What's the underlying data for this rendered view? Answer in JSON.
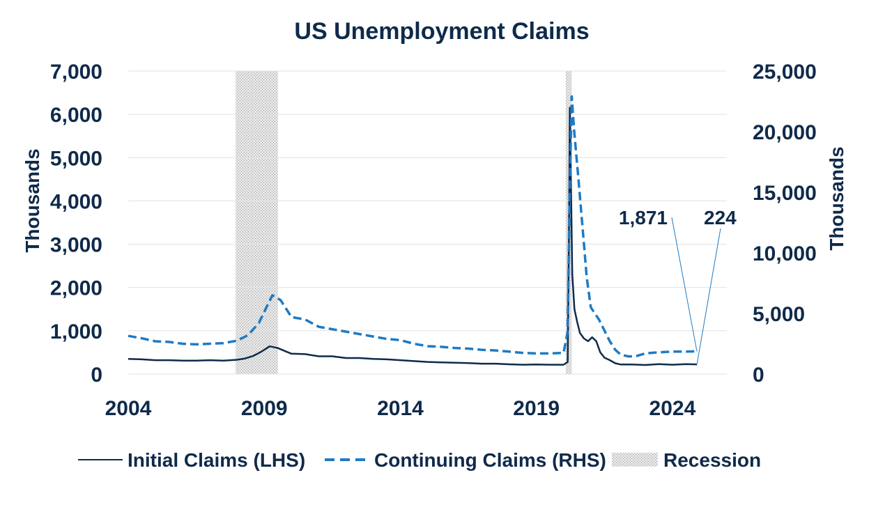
{
  "chart_data": {
    "type": "line",
    "title": "US Unemployment Claims",
    "x_axis": {
      "range": [
        2004,
        2026
      ],
      "ticks": [
        "2004",
        "2009",
        "2014",
        "2019",
        "2024"
      ]
    },
    "y_left": {
      "label": "Thousands",
      "range": [
        0,
        7000
      ],
      "ticks": [
        "0",
        "1,000",
        "2,000",
        "3,000",
        "4,000",
        "5,000",
        "6,000",
        "7,000"
      ]
    },
    "y_right": {
      "label": "Thousands",
      "range": [
        0,
        25000
      ],
      "ticks": [
        "0",
        "5,000",
        "10,000",
        "15,000",
        "20,000",
        "25,000"
      ]
    },
    "grid": true,
    "legend_position": "bottom",
    "recessions": [
      {
        "start": 2007.95,
        "end": 2009.5
      },
      {
        "start": 2020.08,
        "end": 2020.3
      }
    ],
    "series": [
      {
        "name": "Initial Claims (LHS)",
        "axis": "left",
        "color": "#0f2a4a",
        "style": "solid",
        "points": [
          [
            2004.0,
            350
          ],
          [
            2004.5,
            340
          ],
          [
            2005.0,
            320
          ],
          [
            2005.5,
            320
          ],
          [
            2006.0,
            310
          ],
          [
            2006.5,
            310
          ],
          [
            2007.0,
            320
          ],
          [
            2007.5,
            310
          ],
          [
            2008.0,
            330
          ],
          [
            2008.3,
            360
          ],
          [
            2008.6,
            420
          ],
          [
            2008.9,
            520
          ],
          [
            2009.2,
            640
          ],
          [
            2009.5,
            600
          ],
          [
            2009.8,
            520
          ],
          [
            2010.0,
            470
          ],
          [
            2010.5,
            460
          ],
          [
            2011.0,
            410
          ],
          [
            2011.5,
            410
          ],
          [
            2012.0,
            370
          ],
          [
            2012.5,
            370
          ],
          [
            2013.0,
            350
          ],
          [
            2013.5,
            340
          ],
          [
            2014.0,
            320
          ],
          [
            2014.5,
            300
          ],
          [
            2015.0,
            280
          ],
          [
            2015.5,
            270
          ],
          [
            2016.0,
            260
          ],
          [
            2016.5,
            255
          ],
          [
            2017.0,
            240
          ],
          [
            2017.5,
            240
          ],
          [
            2018.0,
            225
          ],
          [
            2018.5,
            215
          ],
          [
            2019.0,
            220
          ],
          [
            2019.5,
            215
          ],
          [
            2020.0,
            215
          ],
          [
            2020.15,
            280
          ],
          [
            2020.2,
            3300
          ],
          [
            2020.23,
            6150
          ],
          [
            2020.27,
            4400
          ],
          [
            2020.32,
            2300
          ],
          [
            2020.4,
            1500
          ],
          [
            2020.5,
            1200
          ],
          [
            2020.6,
            950
          ],
          [
            2020.75,
            820
          ],
          [
            2020.9,
            760
          ],
          [
            2021.05,
            850
          ],
          [
            2021.2,
            760
          ],
          [
            2021.35,
            500
          ],
          [
            2021.5,
            380
          ],
          [
            2021.7,
            320
          ],
          [
            2021.9,
            250
          ],
          [
            2022.1,
            220
          ],
          [
            2022.5,
            220
          ],
          [
            2023.0,
            210
          ],
          [
            2023.5,
            230
          ],
          [
            2024.0,
            215
          ],
          [
            2024.5,
            230
          ],
          [
            2024.9,
            224
          ]
        ]
      },
      {
        "name": "Continuing Claims (RHS)",
        "axis": "right",
        "color": "#1f7ac4",
        "style": "dashed",
        "points": [
          [
            2004.0,
            3150
          ],
          [
            2004.5,
            2950
          ],
          [
            2005.0,
            2700
          ],
          [
            2005.5,
            2650
          ],
          [
            2006.0,
            2500
          ],
          [
            2006.5,
            2450
          ],
          [
            2007.0,
            2500
          ],
          [
            2007.5,
            2550
          ],
          [
            2008.0,
            2750
          ],
          [
            2008.4,
            3200
          ],
          [
            2008.8,
            4200
          ],
          [
            2009.1,
            5600
          ],
          [
            2009.3,
            6500
          ],
          [
            2009.6,
            6100
          ],
          [
            2010.0,
            4700
          ],
          [
            2010.5,
            4500
          ],
          [
            2011.0,
            3900
          ],
          [
            2011.5,
            3700
          ],
          [
            2012.0,
            3500
          ],
          [
            2012.5,
            3300
          ],
          [
            2013.0,
            3100
          ],
          [
            2013.5,
            2900
          ],
          [
            2014.0,
            2800
          ],
          [
            2014.5,
            2500
          ],
          [
            2015.0,
            2300
          ],
          [
            2015.5,
            2250
          ],
          [
            2016.0,
            2150
          ],
          [
            2016.5,
            2100
          ],
          [
            2017.0,
            2000
          ],
          [
            2017.5,
            1950
          ],
          [
            2018.0,
            1850
          ],
          [
            2018.5,
            1750
          ],
          [
            2019.0,
            1700
          ],
          [
            2019.5,
            1700
          ],
          [
            2020.0,
            1750
          ],
          [
            2020.15,
            3500
          ],
          [
            2020.22,
            14000
          ],
          [
            2020.3,
            22900
          ],
          [
            2020.4,
            19800
          ],
          [
            2020.55,
            16000
          ],
          [
            2020.7,
            12000
          ],
          [
            2020.85,
            8000
          ],
          [
            2021.0,
            5500
          ],
          [
            2021.3,
            4500
          ],
          [
            2021.5,
            3600
          ],
          [
            2021.7,
            2700
          ],
          [
            2021.9,
            2000
          ],
          [
            2022.1,
            1600
          ],
          [
            2022.4,
            1450
          ],
          [
            2022.7,
            1500
          ],
          [
            2023.0,
            1700
          ],
          [
            2023.5,
            1800
          ],
          [
            2024.0,
            1850
          ],
          [
            2024.5,
            1850
          ],
          [
            2024.9,
            1871
          ]
        ]
      }
    ],
    "annotations": [
      {
        "text": "1,871",
        "series": "Continuing Claims (RHS)",
        "x": 2024.9,
        "value": 1871
      },
      {
        "text": "224",
        "series": "Initial Claims (LHS)",
        "x": 2024.9,
        "value": 224
      }
    ],
    "legend": [
      {
        "label": "Initial Claims (LHS)"
      },
      {
        "label": "Continuing Claims (RHS)"
      },
      {
        "label": "Recession"
      }
    ]
  }
}
